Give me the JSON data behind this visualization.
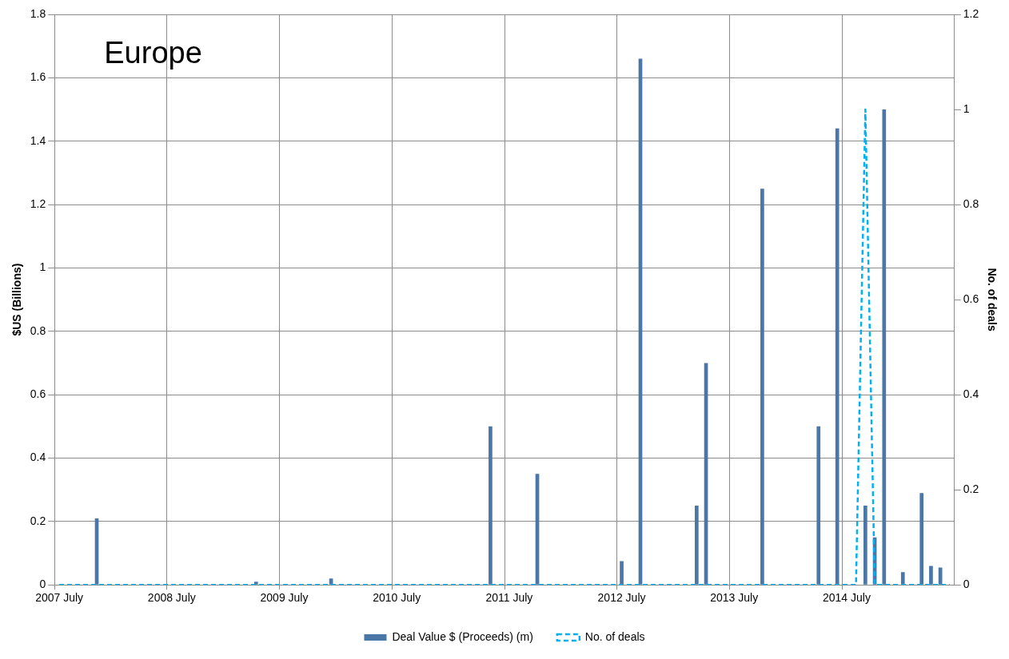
{
  "chart_data": {
    "type": "bar",
    "title": "Europe",
    "ylabel": "$US (Billions)",
    "y2label": "No. of deals",
    "categories": [
      "2007 July",
      null,
      null,
      null,
      null,
      null,
      null,
      null,
      null,
      null,
      null,
      null,
      "2008 July",
      null,
      null,
      null,
      null,
      null,
      null,
      null,
      null,
      null,
      null,
      null,
      "2009 July",
      null,
      null,
      null,
      null,
      null,
      null,
      null,
      null,
      null,
      null,
      null,
      "2010 July",
      null,
      null,
      null,
      null,
      null,
      null,
      null,
      null,
      null,
      null,
      null,
      "2011 July",
      null,
      null,
      null,
      null,
      null,
      null,
      null,
      null,
      null,
      null,
      null,
      "2012 July",
      null,
      null,
      null,
      null,
      null,
      null,
      null,
      null,
      null,
      null,
      null,
      "2013 July",
      null,
      null,
      null,
      null,
      null,
      null,
      null,
      null,
      null,
      null,
      null,
      "2014 July",
      null,
      null,
      null,
      null,
      null,
      null,
      null,
      null,
      null,
      null,
      null
    ],
    "series": [
      {
        "name": "Deal Value $ (Proceeds) (m)",
        "color": "#4a76a8",
        "values": [
          0,
          0,
          0,
          0,
          0.21,
          0,
          0,
          0,
          0,
          0,
          0,
          0,
          0,
          0,
          0,
          0,
          0,
          0,
          0,
          0,
          0,
          0.01,
          0,
          0,
          0,
          0,
          0,
          0,
          0,
          0.02,
          0,
          0,
          0,
          0,
          0,
          0,
          0,
          0,
          0,
          0,
          0,
          0,
          0,
          0,
          0,
          0,
          0.5,
          0,
          0,
          0,
          0,
          0.35,
          0,
          0,
          0,
          0,
          0,
          0,
          0,
          0,
          0.075,
          0,
          1.66,
          0,
          0,
          0,
          0,
          0,
          0.25,
          0.7,
          0,
          0,
          0,
          0,
          0,
          1.25,
          0,
          0,
          0,
          0,
          0,
          0.5,
          0,
          1.44,
          0,
          0,
          0.25,
          0.15,
          1.5,
          0,
          0.04,
          0,
          0.29,
          0.06,
          0.055,
          0
        ]
      },
      {
        "name": "No. of deals",
        "type": "line",
        "axis": "y2",
        "color": "#00b0f0",
        "line_style": "dashed",
        "values": [
          0,
          0,
          0,
          0,
          0,
          0,
          0,
          0,
          0,
          0,
          0,
          0,
          0,
          0,
          0,
          0,
          0,
          0,
          0,
          0,
          0,
          0,
          0,
          0,
          0,
          0,
          0,
          0,
          0,
          0,
          0,
          0,
          0,
          0,
          0,
          0,
          0,
          0,
          0,
          0,
          0,
          0,
          0,
          0,
          0,
          0,
          0,
          0,
          0,
          0,
          0,
          0,
          0,
          0,
          0,
          0,
          0,
          0,
          0,
          0,
          0,
          0,
          0,
          0,
          0,
          0,
          0,
          0,
          0,
          0,
          0,
          0,
          0,
          0,
          0,
          0,
          0,
          0,
          0,
          0,
          0,
          0,
          0,
          0,
          0,
          0,
          1,
          0,
          0,
          0,
          0,
          0,
          0,
          0,
          0,
          0
        ]
      }
    ],
    "ylim": [
      0,
      1.8
    ],
    "yticks": [
      0,
      0.2,
      0.4,
      0.6,
      0.8,
      1,
      1.2,
      1.4,
      1.6,
      1.8
    ],
    "y2lim": [
      0,
      1.2
    ],
    "y2ticks": [
      0,
      0.2,
      0.4,
      0.6,
      0.8,
      1,
      1.2
    ],
    "grid": true,
    "legend": "bottom",
    "marker": "none"
  }
}
